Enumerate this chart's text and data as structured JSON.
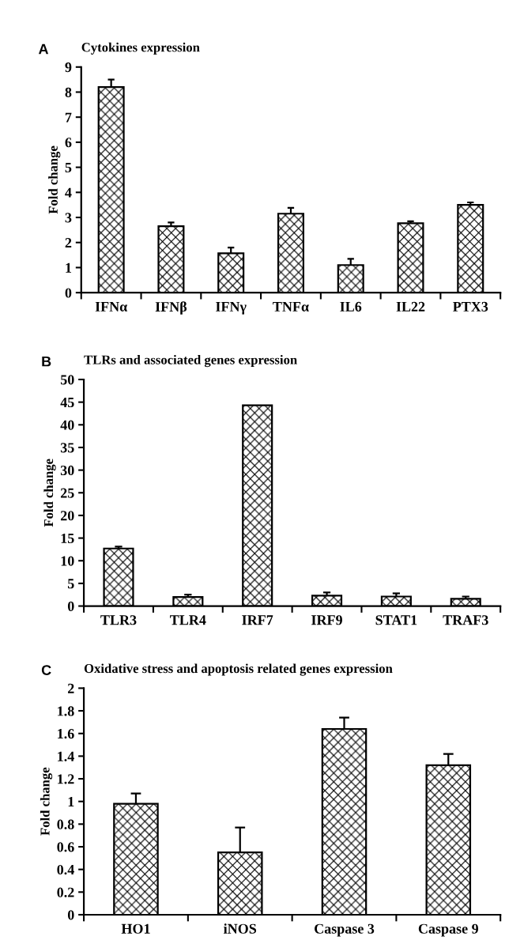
{
  "chart_data": [
    {
      "type": "bar",
      "title": "Cytokines expression",
      "ylabel": "Fold change",
      "annotations": [
        "A"
      ],
      "categories": [
        "IFNα",
        "IFNβ",
        "IFNγ",
        "TNFα",
        "IL6",
        "IL22",
        "PTX3"
      ],
      "values": [
        8.2,
        2.65,
        1.57,
        3.15,
        1.1,
        2.77,
        3.5
      ],
      "errors": [
        [
          8.2,
          8.5
        ],
        [
          2.65,
          2.8
        ],
        [
          1.57,
          1.8
        ],
        [
          3.15,
          3.38
        ],
        [
          1.1,
          1.35
        ],
        [
          2.77,
          2.85
        ],
        [
          3.5,
          3.6
        ]
      ],
      "color": "#000000",
      "ylim": [
        0,
        9
      ],
      "yticks": [
        0,
        1,
        2,
        3,
        4,
        5,
        6,
        7,
        8,
        9
      ],
      "grid": false
    },
    {
      "type": "bar",
      "title": "TLRs and associated genes expression",
      "ylabel": "Fold change",
      "annotations": [
        "B"
      ],
      "categories": [
        "TLR3",
        "TLR4",
        "IRF7",
        "IRF9",
        "STAT1",
        "TRAF3"
      ],
      "values": [
        12.7,
        2.0,
        44.3,
        2.3,
        2.1,
        1.6
      ],
      "errors": [
        [
          12.7,
          13.1
        ],
        [
          2.0,
          2.5
        ],
        null,
        [
          2.3,
          3.0
        ],
        [
          2.1,
          2.8
        ],
        [
          1.6,
          2.1
        ]
      ],
      "color": "#000000",
      "ylim": [
        0,
        50
      ],
      "yticks": [
        0,
        5,
        10,
        15,
        20,
        25,
        30,
        35,
        40,
        45,
        50
      ],
      "grid": false
    },
    {
      "type": "bar",
      "title": "Oxidative stress and apoptosis related genes expression",
      "ylabel": "Fold change",
      "annotations": [
        "C"
      ],
      "categories": [
        "HO1",
        "iNOS",
        "Caspase 3",
        "Caspase 9"
      ],
      "values": [
        0.98,
        0.55,
        1.64,
        1.32
      ],
      "errors": [
        [
          0.98,
          1.07
        ],
        [
          0.55,
          0.77
        ],
        [
          1.64,
          1.74
        ],
        [
          1.32,
          1.42
        ]
      ],
      "color": "#000000",
      "ylim": [
        0,
        2
      ],
      "yticks": [
        0,
        0.2,
        0.4,
        0.6,
        0.8,
        1,
        1.2,
        1.4,
        1.6,
        1.8,
        2
      ],
      "grid": false
    }
  ]
}
